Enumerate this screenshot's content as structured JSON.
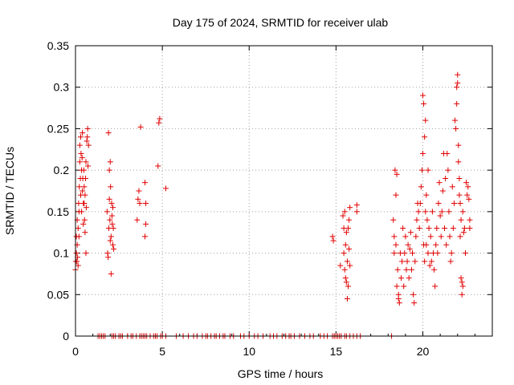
{
  "chart_data": {
    "type": "scatter",
    "title": "Day 175 of 2024, SRMTID for receiver ulab",
    "xlabel": "GPS time / hours",
    "ylabel": "SRMTID / TECUs",
    "xlim": [
      0,
      24
    ],
    "ylim": [
      0,
      0.35
    ],
    "grid": true,
    "marker": "plus",
    "color": "#e00000",
    "x_ticks": [
      0,
      5,
      10,
      15,
      20
    ],
    "x_tick_labels": [
      "0",
      "5",
      "10",
      "15",
      "20"
    ],
    "y_ticks": [
      0,
      0.05,
      0.1,
      0.15,
      0.2,
      0.25,
      0.3,
      0.35
    ],
    "y_tick_labels": [
      "0",
      "0.05",
      "0.1",
      "0.15",
      "0.2",
      "0.25",
      "0.3",
      "0.35"
    ],
    "series": [
      {
        "name": "SRMTID",
        "points": [
          [
            0.0,
            0.08
          ],
          [
            0.02,
            0.09
          ],
          [
            0.05,
            0.1
          ],
          [
            0.05,
            0.12
          ],
          [
            0.08,
            0.09
          ],
          [
            0.1,
            0.11
          ],
          [
            0.1,
            0.14
          ],
          [
            0.12,
            0.095
          ],
          [
            0.15,
            0.085
          ],
          [
            0.15,
            0.13
          ],
          [
            0.18,
            0.16
          ],
          [
            0.2,
            0.12
          ],
          [
            0.2,
            0.15
          ],
          [
            0.22,
            0.18
          ],
          [
            0.25,
            0.21
          ],
          [
            0.25,
            0.23
          ],
          [
            0.28,
            0.19
          ],
          [
            0.3,
            0.17
          ],
          [
            0.3,
            0.24
          ],
          [
            0.32,
            0.22
          ],
          [
            0.35,
            0.2
          ],
          [
            0.35,
            0.15
          ],
          [
            0.38,
            0.215
          ],
          [
            0.4,
            0.245
          ],
          [
            0.4,
            0.175
          ],
          [
            0.42,
            0.19
          ],
          [
            0.45,
            0.16
          ],
          [
            0.45,
            0.135
          ],
          [
            0.48,
            0.2
          ],
          [
            0.5,
            0.18
          ],
          [
            0.5,
            0.16
          ],
          [
            0.52,
            0.14
          ],
          [
            0.55,
            0.125
          ],
          [
            0.55,
            0.17
          ],
          [
            0.58,
            0.19
          ],
          [
            0.6,
            0.21
          ],
          [
            0.6,
            0.1
          ],
          [
            0.62,
            0.155
          ],
          [
            0.65,
            0.235
          ],
          [
            0.68,
            0.24
          ],
          [
            0.7,
            0.25
          ],
          [
            0.72,
            0.205
          ],
          [
            0.75,
            0.23
          ],
          [
            1.82,
            0.15
          ],
          [
            1.85,
            0.1
          ],
          [
            1.88,
            0.095
          ],
          [
            1.9,
            0.245
          ],
          [
            1.92,
            0.13
          ],
          [
            1.95,
            0.2
          ],
          [
            1.95,
            0.165
          ],
          [
            1.98,
            0.14
          ],
          [
            2.0,
            0.21
          ],
          [
            2.0,
            0.115
          ],
          [
            2.02,
            0.18
          ],
          [
            2.05,
            0.12
          ],
          [
            2.05,
            0.075
          ],
          [
            2.08,
            0.16
          ],
          [
            2.1,
            0.145
          ],
          [
            2.12,
            0.135
          ],
          [
            2.15,
            0.155
          ],
          [
            2.15,
            0.11
          ],
          [
            2.18,
            0.13
          ],
          [
            2.2,
            0.105
          ],
          [
            3.55,
            0.14
          ],
          [
            3.6,
            0.165
          ],
          [
            3.65,
            0.175
          ],
          [
            3.7,
            0.16
          ],
          [
            3.75,
            0.252
          ],
          [
            4.0,
            0.185
          ],
          [
            4.0,
            0.12
          ],
          [
            4.05,
            0.135
          ],
          [
            4.05,
            0.16
          ],
          [
            4.75,
            0.205
          ],
          [
            4.8,
            0.257
          ],
          [
            4.85,
            0.262
          ],
          [
            5.2,
            0.178
          ],
          [
            14.8,
            0.12
          ],
          [
            14.85,
            0.115
          ],
          [
            15.25,
            0.085
          ],
          [
            15.4,
            0.145
          ],
          [
            15.45,
            0.13
          ],
          [
            15.45,
            0.1
          ],
          [
            15.5,
            0.08
          ],
          [
            15.5,
            0.15
          ],
          [
            15.55,
            0.07
          ],
          [
            15.55,
            0.11
          ],
          [
            15.6,
            0.065
          ],
          [
            15.6,
            0.125
          ],
          [
            15.65,
            0.09
          ],
          [
            15.65,
            0.045
          ],
          [
            15.7,
            0.06
          ],
          [
            15.7,
            0.13
          ],
          [
            15.75,
            0.105
          ],
          [
            15.75,
            0.14
          ],
          [
            15.8,
            0.155
          ],
          [
            15.8,
            0.085
          ],
          [
            16.2,
            0.15
          ],
          [
            16.2,
            0.158
          ],
          [
            18.3,
            0.14
          ],
          [
            18.35,
            0.12
          ],
          [
            18.35,
            0.1
          ],
          [
            18.4,
            0.2
          ],
          [
            18.45,
            0.17
          ],
          [
            18.45,
            0.11
          ],
          [
            18.5,
            0.195
          ],
          [
            18.5,
            0.06
          ],
          [
            18.55,
            0.08
          ],
          [
            18.6,
            0.05
          ],
          [
            18.6,
            0.045
          ],
          [
            18.65,
            0.04
          ],
          [
            18.7,
            0.1
          ],
          [
            18.75,
            0.07
          ],
          [
            18.8,
            0.09
          ],
          [
            18.85,
            0.13
          ],
          [
            18.9,
            0.06
          ],
          [
            18.95,
            0.1
          ],
          [
            19.0,
            0.12
          ],
          [
            19.05,
            0.08
          ],
          [
            19.1,
            0.09
          ],
          [
            19.15,
            0.11
          ],
          [
            19.2,
            0.07
          ],
          [
            19.25,
            0.105
          ],
          [
            19.3,
            0.125
          ],
          [
            19.35,
            0.08
          ],
          [
            19.4,
            0.1
          ],
          [
            19.45,
            0.05
          ],
          [
            19.5,
            0.04
          ],
          [
            19.55,
            0.09
          ],
          [
            19.6,
            0.12
          ],
          [
            19.65,
            0.14
          ],
          [
            19.7,
            0.16
          ],
          [
            19.75,
            0.15
          ],
          [
            19.8,
            0.13
          ],
          [
            19.85,
            0.16
          ],
          [
            19.9,
            0.18
          ],
          [
            19.95,
            0.2
          ],
          [
            20.0,
            0.22
          ],
          [
            20.0,
            0.29
          ],
          [
            20.05,
            0.28
          ],
          [
            20.05,
            0.11
          ],
          [
            20.1,
            0.24
          ],
          [
            20.1,
            0.09
          ],
          [
            20.15,
            0.26
          ],
          [
            20.15,
            0.15
          ],
          [
            20.2,
            0.17
          ],
          [
            20.2,
            0.11
          ],
          [
            20.25,
            0.14
          ],
          [
            20.3,
            0.2
          ],
          [
            20.3,
            0.1
          ],
          [
            20.35,
            0.13
          ],
          [
            20.4,
            0.085
          ],
          [
            20.45,
            0.12
          ],
          [
            20.5,
            0.09
          ],
          [
            20.55,
            0.15
          ],
          [
            20.6,
            0.1
          ],
          [
            20.65,
            0.08
          ],
          [
            20.7,
            0.06
          ],
          [
            20.75,
            0.11
          ],
          [
            20.8,
            0.13
          ],
          [
            20.85,
            0.1
          ],
          [
            20.9,
            0.16
          ],
          [
            20.95,
            0.185
          ],
          [
            21.0,
            0.145
          ],
          [
            21.05,
            0.12
          ],
          [
            21.1,
            0.15
          ],
          [
            21.15,
            0.175
          ],
          [
            21.2,
            0.22
          ],
          [
            21.25,
            0.13
          ],
          [
            21.3,
            0.19
          ],
          [
            21.35,
            0.11
          ],
          [
            21.4,
            0.22
          ],
          [
            21.45,
            0.2
          ],
          [
            21.5,
            0.15
          ],
          [
            21.55,
            0.12
          ],
          [
            21.6,
            0.09
          ],
          [
            21.65,
            0.1
          ],
          [
            21.7,
            0.18
          ],
          [
            21.75,
            0.13
          ],
          [
            21.8,
            0.16
          ],
          [
            21.85,
            0.26
          ],
          [
            21.9,
            0.25
          ],
          [
            21.95,
            0.28
          ],
          [
            21.95,
            0.3
          ],
          [
            22.0,
            0.305
          ],
          [
            22.0,
            0.315
          ],
          [
            22.05,
            0.21
          ],
          [
            22.05,
            0.23
          ],
          [
            22.1,
            0.19
          ],
          [
            22.1,
            0.17
          ],
          [
            22.15,
            0.16
          ],
          [
            22.15,
            0.12
          ],
          [
            22.2,
            0.14
          ],
          [
            22.2,
            0.07
          ],
          [
            22.25,
            0.05
          ],
          [
            22.25,
            0.065
          ],
          [
            22.3,
            0.06
          ],
          [
            22.3,
            0.15
          ],
          [
            22.35,
            0.125
          ],
          [
            22.4,
            0.13
          ],
          [
            22.45,
            0.1
          ],
          [
            22.5,
            0.185
          ],
          [
            22.55,
            0.17
          ],
          [
            22.6,
            0.18
          ],
          [
            22.65,
            0.165
          ],
          [
            22.7,
            0.14
          ],
          [
            22.7,
            0.13
          ]
        ],
        "zero_points_x": [
          1.3,
          1.4,
          1.5,
          1.6,
          1.7,
          2.1,
          2.2,
          2.3,
          2.5,
          2.6,
          2.7,
          3.0,
          3.2,
          3.3,
          3.5,
          3.7,
          3.8,
          3.9,
          4.0,
          4.1,
          4.3,
          4.5,
          4.6,
          4.7,
          4.9,
          5.0,
          5.2,
          5.8,
          6.2,
          6.5,
          6.8,
          7.0,
          7.3,
          7.5,
          7.6,
          7.8,
          8.0,
          8.1,
          8.3,
          8.5,
          8.6,
          8.9,
          9.1,
          9.5,
          9.7,
          10.0,
          10.3,
          10.5,
          10.8,
          11.2,
          11.4,
          11.6,
          11.9,
          12.1,
          12.3,
          12.4,
          12.6,
          12.9,
          13.2,
          13.5,
          13.7,
          14.1,
          14.3,
          14.5,
          14.8,
          14.9,
          15.0,
          15.1,
          15.2,
          15.3,
          15.5,
          15.6,
          15.8,
          16.0,
          16.2,
          16.4,
          18.2
        ]
      }
    ]
  }
}
